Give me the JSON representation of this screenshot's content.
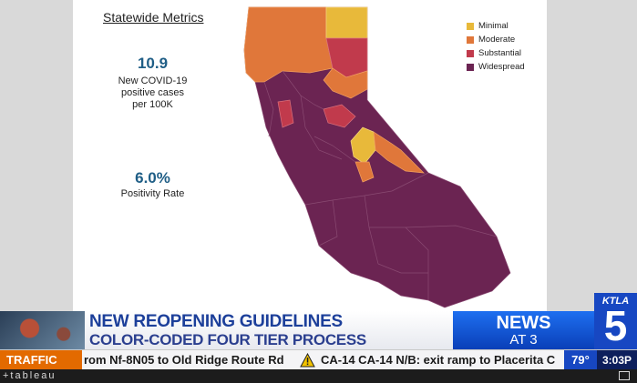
{
  "slide": {
    "title": "Statewide Metrics",
    "cases_value": "10.9",
    "cases_label_1": "New COVID-19",
    "cases_label_2": "positive cases",
    "cases_label_3": "per 100K",
    "positivity_value": "6.0%",
    "positivity_label": "Positivity Rate",
    "legend": [
      {
        "label": "Minimal",
        "color": "#e8b93a"
      },
      {
        "label": "Moderate",
        "color": "#e0773a"
      },
      {
        "label": "Substantial",
        "color": "#c13a4c"
      },
      {
        "label": "Widespread",
        "color": "#6b2452"
      }
    ]
  },
  "lower_third": {
    "headline_1": "NEW REOPENING GUIDELINES",
    "headline_2": "COLOR-CODED FOUR TIER PROCESS",
    "news_word": "NEWS",
    "news_time": "AT 3",
    "station_text": "KTLA",
    "station_number": "5"
  },
  "ticker": {
    "label": "TRAFFIC",
    "text_1": "rom Nf-8N05 to Old Ridge Route Rd",
    "text_2": "CA-14  CA-14 N/B: exit ramp to Placerita C",
    "temperature": "79°",
    "clock": "3:03P"
  },
  "bottom": {
    "brand": "+tableau"
  },
  "icons": {
    "warning": "warning-icon",
    "fullscreen": "fullscreen-icon"
  }
}
